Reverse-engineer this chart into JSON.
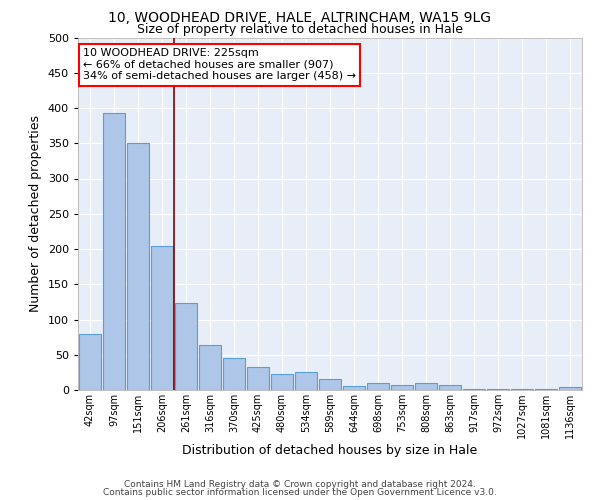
{
  "title1": "10, WOODHEAD DRIVE, HALE, ALTRINCHAM, WA15 9LG",
  "title2": "Size of property relative to detached houses in Hale",
  "xlabel": "Distribution of detached houses by size in Hale",
  "ylabel": "Number of detached properties",
  "categories": [
    "42sqm",
    "97sqm",
    "151sqm",
    "206sqm",
    "261sqm",
    "316sqm",
    "370sqm",
    "425sqm",
    "480sqm",
    "534sqm",
    "589sqm",
    "644sqm",
    "698sqm",
    "753sqm",
    "808sqm",
    "863sqm",
    "917sqm",
    "972sqm",
    "1027sqm",
    "1081sqm",
    "1136sqm"
  ],
  "values": [
    80,
    393,
    350,
    204,
    124,
    64,
    45,
    32,
    23,
    26,
    16,
    5,
    10,
    7,
    10,
    7,
    2,
    2,
    2,
    2,
    4
  ],
  "bar_color": "#aec6e8",
  "bar_edge_color": "#5a9fd4",
  "bg_color": "#e8eef8",
  "vline_color": "#8b0000",
  "annotation_text": "10 WOODHEAD DRIVE: 225sqm\n← 66% of detached houses are smaller (907)\n34% of semi-detached houses are larger (458) →",
  "ylim": [
    0,
    500
  ],
  "yticks": [
    0,
    50,
    100,
    150,
    200,
    250,
    300,
    350,
    400,
    450,
    500
  ],
  "footer1": "Contains HM Land Registry data © Crown copyright and database right 2024.",
  "footer2": "Contains public sector information licensed under the Open Government Licence v3.0."
}
